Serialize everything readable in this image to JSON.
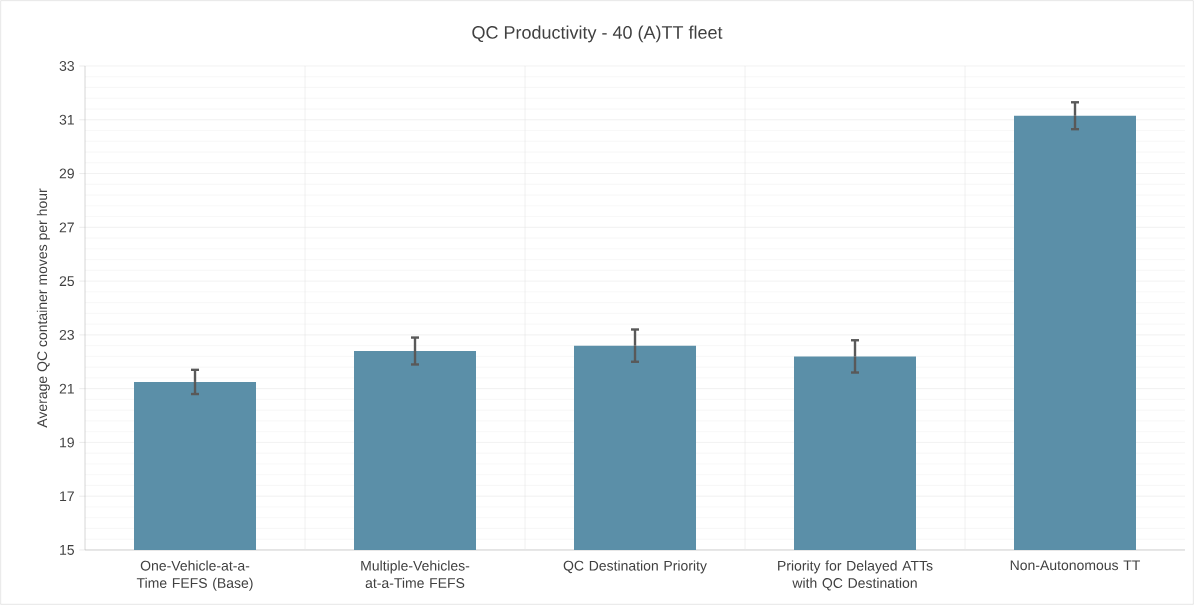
{
  "chart_data": {
    "type": "bar",
    "title": "QC Productivity - 40 (A)TT fleet",
    "ylabel": "Average QC container moves per hour",
    "categories": [
      "One-Vehicle-at-a-Time FEFS (Base)",
      "Multiple-Vehicles-at-a-Time FEFS",
      "QC Destination Priority",
      "Priority for Delayed ATTs with QC Destination",
      "Non-Autonomous TT"
    ],
    "values": [
      21.25,
      22.4,
      22.6,
      22.2,
      31.15
    ],
    "errors": [
      0.45,
      0.5,
      0.6,
      0.6,
      0.5
    ],
    "color": "#5b8fa8",
    "ylim": [
      15,
      33
    ],
    "yticks": [
      15,
      17,
      19,
      21,
      23,
      25,
      27,
      29,
      31,
      33
    ],
    "grid": true
  }
}
